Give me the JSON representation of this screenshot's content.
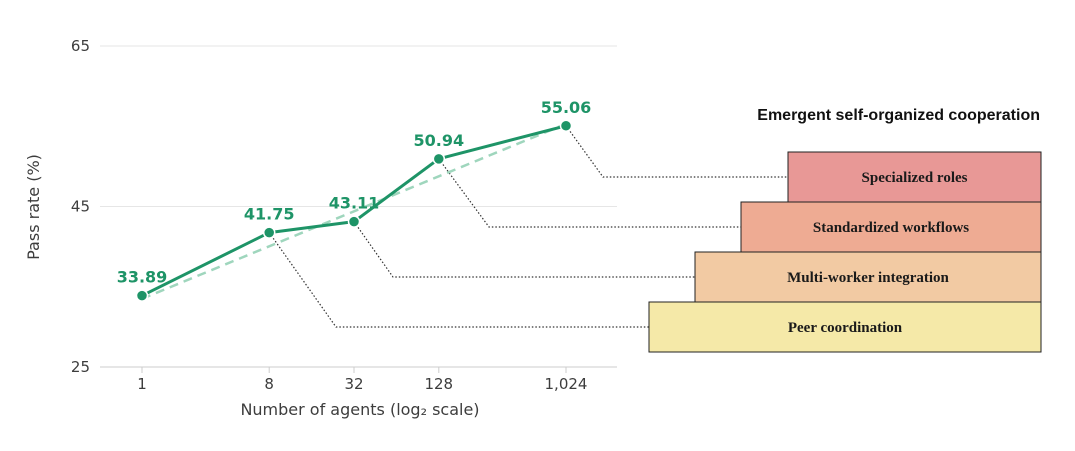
{
  "chart_data": {
    "type": "line",
    "title": "",
    "xlabel": "Number of agents (log₂ scale)",
    "ylabel": "Pass rate (%)",
    "x_scale": "log2",
    "x": [
      1,
      8,
      32,
      128,
      1024
    ],
    "x_tick_labels": [
      "1",
      "8",
      "32",
      "128",
      "1,024"
    ],
    "ylim": [
      25,
      65
    ],
    "y_ticks": [
      25,
      45,
      65
    ],
    "y_tick_labels": [
      "25",
      "45",
      "65"
    ],
    "grid": true,
    "series": [
      {
        "values": [
          33.89,
          41.75,
          43.11,
          50.94,
          55.06
        ],
        "data_labels": [
          "33.89",
          "41.75",
          "43.11",
          "50.94",
          "55.06"
        ],
        "color": "#1e9467",
        "style": "solid-with-markers"
      },
      {
        "x": [
          1,
          1024
        ],
        "values": [
          33.5,
          55.3
        ],
        "color": "#9fd6bd",
        "style": "dashed-trend"
      }
    ],
    "annotation": {
      "title": "Emergent self-organized cooperation",
      "stages": [
        {
          "label": "Specialized roles",
          "x": 1024,
          "y": 55.06,
          "color": "#e89896"
        },
        {
          "label": "Standardized workflows",
          "x": 128,
          "y": 50.94,
          "color": "#eeab93"
        },
        {
          "label": "Multi-worker integration",
          "x": 32,
          "y": 43.11,
          "color": "#f2caa3"
        },
        {
          "label": "Peer coordination",
          "x": 8,
          "y": 41.75,
          "color": "#f5e9a8"
        }
      ]
    }
  }
}
